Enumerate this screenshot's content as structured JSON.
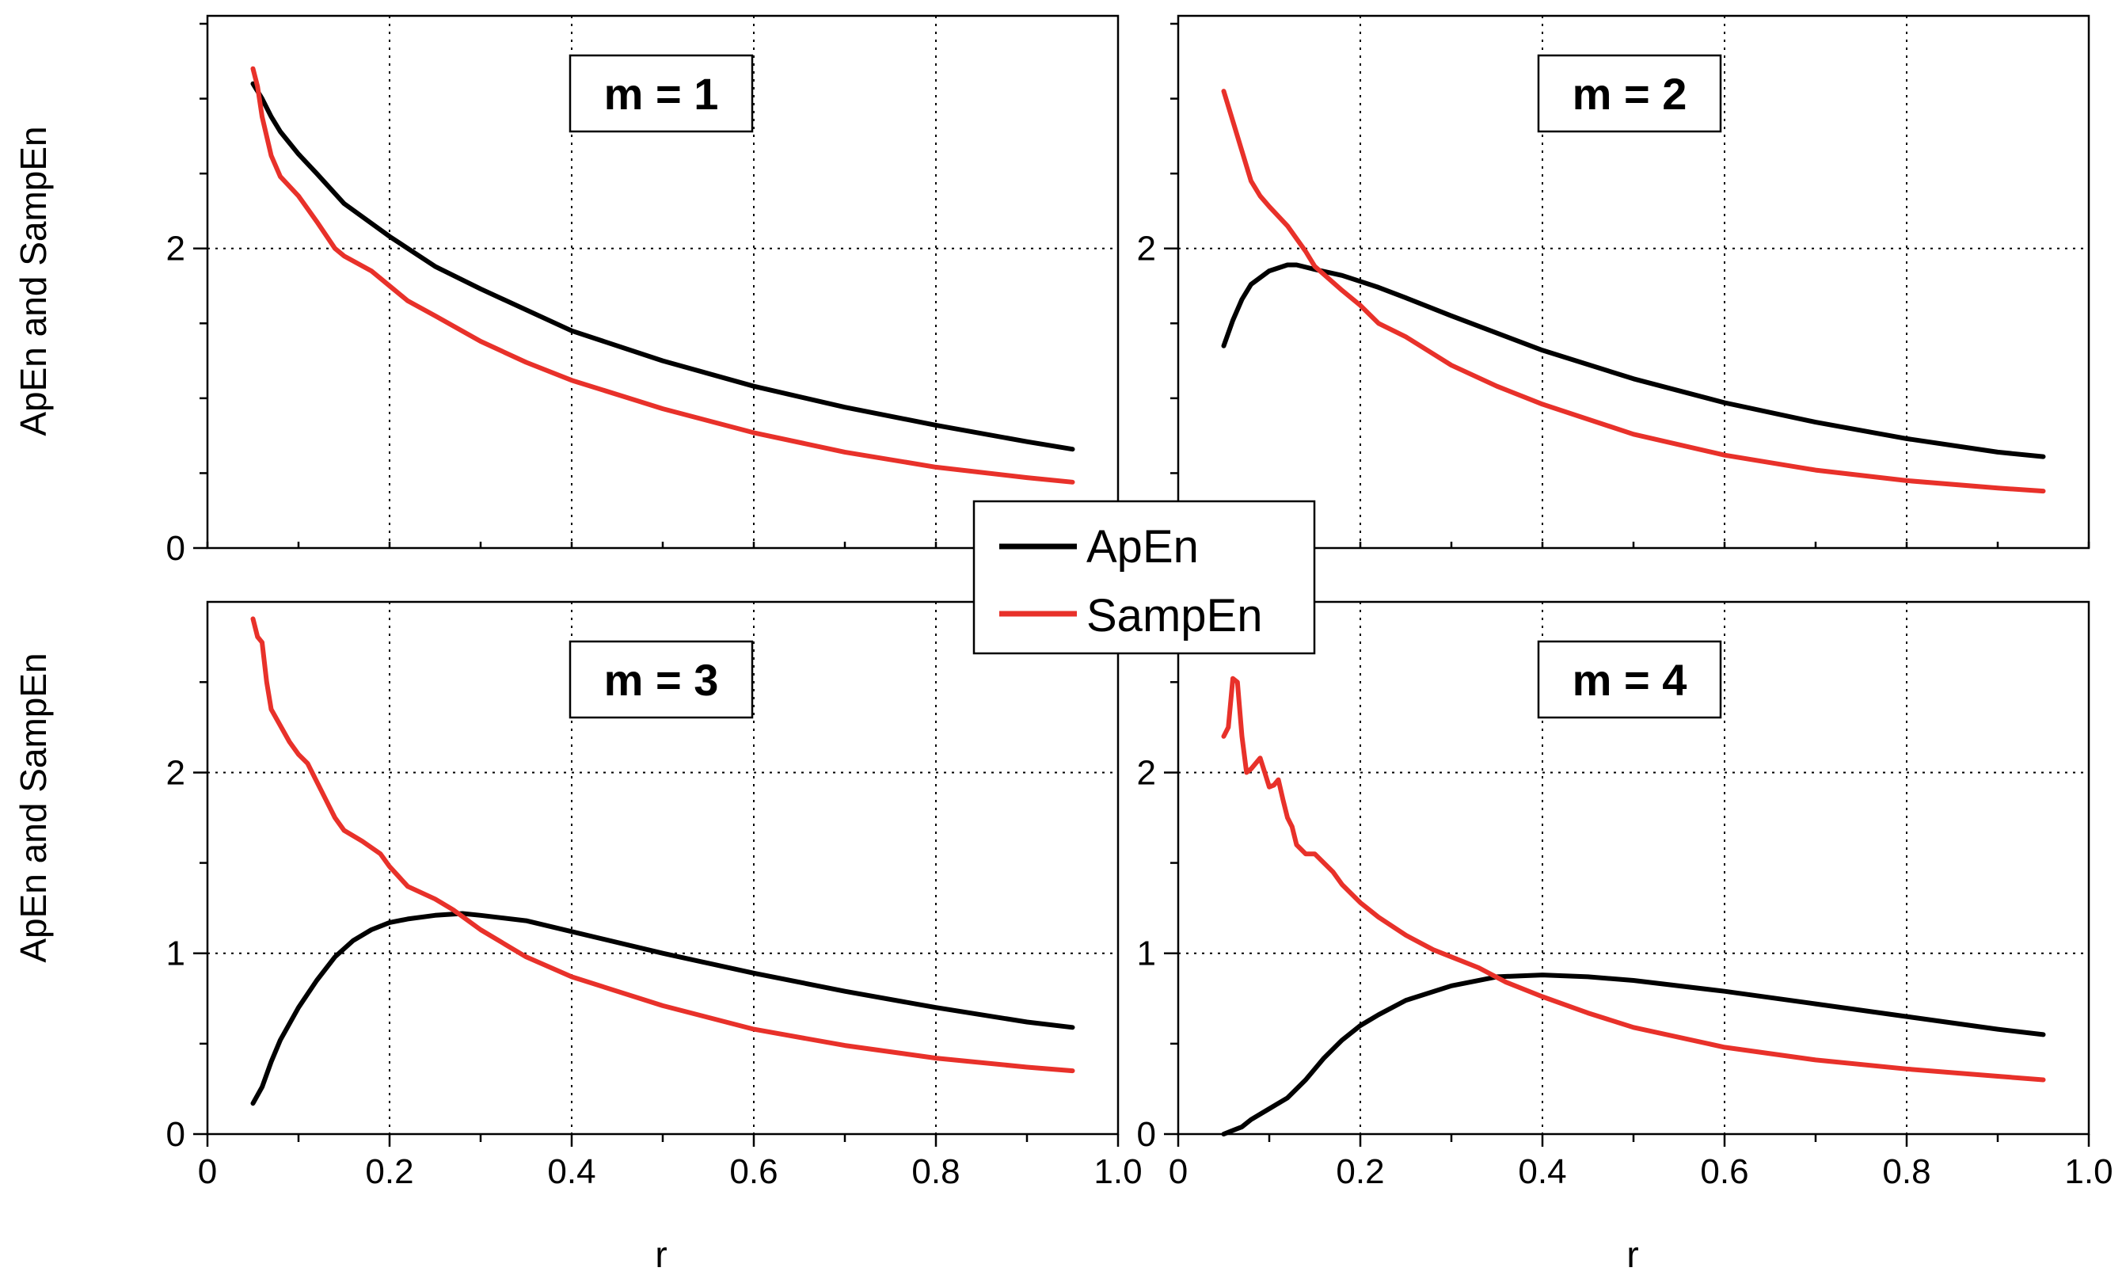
{
  "chart_data": {
    "type": "line",
    "layout": "2x2 grid of line charts",
    "xlabel": "r",
    "ylabel": "ApEn and SampEn",
    "xlim": [
      0,
      1.0
    ],
    "x_ticks": [
      "0",
      "0.2",
      "0.4",
      "0.6",
      "0.8",
      "1.0"
    ],
    "legend": [
      {
        "name": "ApEn",
        "color": "#000000"
      },
      {
        "name": "SampEn",
        "color": "#e8312a"
      }
    ],
    "panels": [
      {
        "title": "m = 1",
        "ylim": [
          0,
          3.5
        ],
        "y_ticks": [
          "0",
          "2"
        ],
        "series": [
          {
            "name": "ApEn",
            "x": [
              0.05,
              0.06,
              0.07,
              0.08,
              0.1,
              0.12,
              0.15,
              0.2,
              0.25,
              0.3,
              0.4,
              0.5,
              0.6,
              0.7,
              0.8,
              0.9,
              0.95
            ],
            "y": [
              3.1,
              3.0,
              2.88,
              2.78,
              2.63,
              2.5,
              2.3,
              2.08,
              1.88,
              1.73,
              1.45,
              1.25,
              1.08,
              0.94,
              0.82,
              0.71,
              0.66
            ]
          },
          {
            "name": "SampEn",
            "x": [
              0.05,
              0.055,
              0.06,
              0.07,
              0.08,
              0.1,
              0.12,
              0.14,
              0.15,
              0.18,
              0.2,
              0.22,
              0.25,
              0.3,
              0.35,
              0.4,
              0.5,
              0.6,
              0.7,
              0.8,
              0.9,
              0.95
            ],
            "y": [
              3.2,
              3.08,
              2.88,
              2.62,
              2.48,
              2.35,
              2.18,
              2.0,
              1.95,
              1.85,
              1.75,
              1.65,
              1.55,
              1.38,
              1.24,
              1.12,
              0.93,
              0.77,
              0.64,
              0.54,
              0.47,
              0.44
            ]
          }
        ]
      },
      {
        "title": "m = 2",
        "ylim": [
          0,
          3.5
        ],
        "y_ticks": [
          "0",
          "2"
        ],
        "series": [
          {
            "name": "ApEn",
            "x": [
              0.05,
              0.06,
              0.07,
              0.08,
              0.1,
              0.12,
              0.13,
              0.15,
              0.18,
              0.2,
              0.22,
              0.25,
              0.3,
              0.4,
              0.5,
              0.6,
              0.7,
              0.8,
              0.9,
              0.95
            ],
            "y": [
              1.35,
              1.52,
              1.66,
              1.76,
              1.85,
              1.89,
              1.89,
              1.86,
              1.82,
              1.78,
              1.74,
              1.67,
              1.55,
              1.32,
              1.13,
              0.97,
              0.84,
              0.73,
              0.64,
              0.61
            ]
          },
          {
            "name": "SampEn",
            "x": [
              0.05,
              0.06,
              0.07,
              0.08,
              0.09,
              0.1,
              0.12,
              0.14,
              0.15,
              0.18,
              0.2,
              0.22,
              0.25,
              0.3,
              0.35,
              0.4,
              0.5,
              0.6,
              0.7,
              0.8,
              0.9,
              0.95
            ],
            "y": [
              3.05,
              2.85,
              2.65,
              2.45,
              2.35,
              2.28,
              2.15,
              1.98,
              1.88,
              1.72,
              1.62,
              1.5,
              1.41,
              1.22,
              1.08,
              0.96,
              0.76,
              0.62,
              0.52,
              0.45,
              0.4,
              0.38
            ]
          }
        ]
      },
      {
        "title": "m = 3",
        "ylim": [
          0,
          2.9
        ],
        "y_ticks": [
          "0",
          "1",
          "2"
        ],
        "series": [
          {
            "name": "ApEn",
            "x": [
              0.05,
              0.06,
              0.07,
              0.08,
              0.1,
              0.12,
              0.14,
              0.16,
              0.18,
              0.2,
              0.22,
              0.25,
              0.28,
              0.3,
              0.35,
              0.4,
              0.5,
              0.6,
              0.7,
              0.8,
              0.9,
              0.95
            ],
            "y": [
              0.17,
              0.26,
              0.4,
              0.52,
              0.7,
              0.85,
              0.98,
              1.07,
              1.13,
              1.17,
              1.19,
              1.21,
              1.22,
              1.21,
              1.18,
              1.12,
              1.0,
              0.89,
              0.79,
              0.7,
              0.62,
              0.59
            ]
          },
          {
            "name": "SampEn",
            "x": [
              0.05,
              0.055,
              0.06,
              0.065,
              0.07,
              0.08,
              0.09,
              0.1,
              0.11,
              0.12,
              0.13,
              0.14,
              0.15,
              0.17,
              0.19,
              0.2,
              0.22,
              0.25,
              0.27,
              0.3,
              0.35,
              0.4,
              0.5,
              0.6,
              0.7,
              0.8,
              0.9,
              0.95
            ],
            "y": [
              2.85,
              2.75,
              2.72,
              2.5,
              2.35,
              2.26,
              2.17,
              2.1,
              2.05,
              1.95,
              1.85,
              1.75,
              1.68,
              1.62,
              1.55,
              1.48,
              1.37,
              1.3,
              1.24,
              1.13,
              0.98,
              0.87,
              0.71,
              0.58,
              0.49,
              0.42,
              0.37,
              0.35
            ]
          }
        ]
      },
      {
        "title": "m = 4",
        "ylim": [
          0,
          2.9
        ],
        "y_ticks": [
          "0",
          "1",
          "2"
        ],
        "series": [
          {
            "name": "ApEn",
            "x": [
              0.05,
              0.06,
              0.07,
              0.08,
              0.1,
              0.12,
              0.14,
              0.16,
              0.18,
              0.2,
              0.22,
              0.25,
              0.3,
              0.35,
              0.4,
              0.45,
              0.5,
              0.6,
              0.7,
              0.8,
              0.9,
              0.95
            ],
            "y": [
              0.0,
              0.02,
              0.04,
              0.08,
              0.14,
              0.2,
              0.3,
              0.42,
              0.52,
              0.6,
              0.66,
              0.74,
              0.82,
              0.87,
              0.88,
              0.87,
              0.85,
              0.79,
              0.72,
              0.65,
              0.58,
              0.55
            ]
          },
          {
            "name": "SampEn",
            "x": [
              0.05,
              0.055,
              0.06,
              0.065,
              0.07,
              0.075,
              0.08,
              0.09,
              0.095,
              0.1,
              0.105,
              0.11,
              0.115,
              0.12,
              0.125,
              0.13,
              0.14,
              0.15,
              0.16,
              0.17,
              0.18,
              0.2,
              0.22,
              0.25,
              0.28,
              0.3,
              0.33,
              0.36,
              0.4,
              0.45,
              0.5,
              0.6,
              0.7,
              0.8,
              0.9,
              0.95
            ],
            "y": [
              2.2,
              2.25,
              2.52,
              2.5,
              2.2,
              2.0,
              2.02,
              2.08,
              2.0,
              1.92,
              1.93,
              1.96,
              1.85,
              1.75,
              1.7,
              1.6,
              1.55,
              1.55,
              1.5,
              1.45,
              1.38,
              1.28,
              1.2,
              1.1,
              1.02,
              0.98,
              0.92,
              0.84,
              0.76,
              0.67,
              0.59,
              0.48,
              0.41,
              0.36,
              0.32,
              0.3
            ]
          }
        ]
      }
    ]
  }
}
